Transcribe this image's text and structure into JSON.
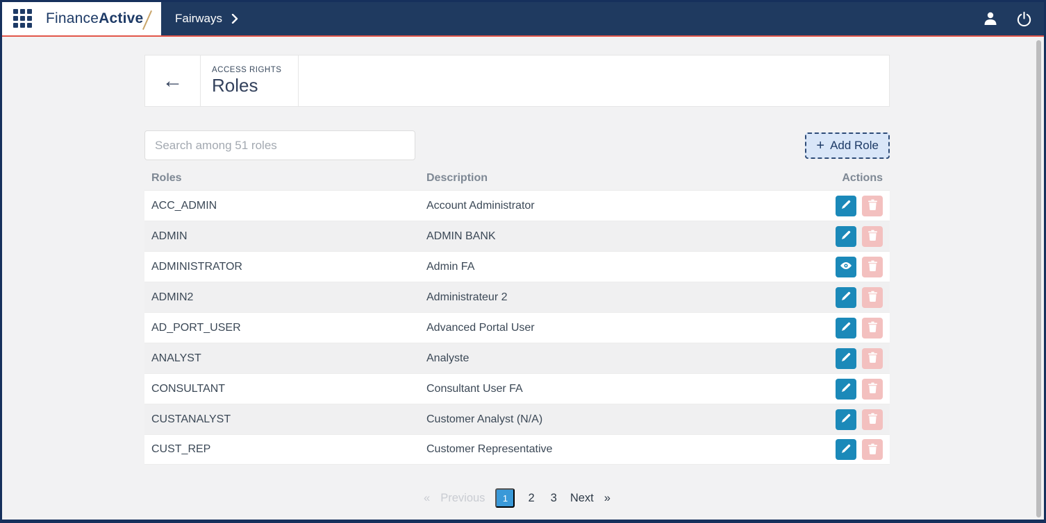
{
  "navbar": {
    "brand": {
      "name_regular": "Finance",
      "name_bold": "Active"
    },
    "breadcrumb": {
      "label": "Fairways"
    }
  },
  "page_header": {
    "back_arrow": "←",
    "section_label": "ACCESS RIGHTS",
    "title": "Roles"
  },
  "toolbar": {
    "search_placeholder": "Search among 51 roles",
    "add_button": {
      "plus": "+",
      "label": "Add Role"
    }
  },
  "table": {
    "headers": {
      "roles": "Roles",
      "description": "Description",
      "actions": "Actions"
    },
    "rows": [
      {
        "role": "ACC_ADMIN",
        "description": "Account Administrator",
        "primary_action": "edit"
      },
      {
        "role": "ADMIN",
        "description": "ADMIN BANK",
        "primary_action": "edit"
      },
      {
        "role": "ADMINISTRATOR",
        "description": "Admin FA",
        "primary_action": "view"
      },
      {
        "role": "ADMIN2",
        "description": "Administrateur 2",
        "primary_action": "edit"
      },
      {
        "role": "AD_PORT_USER",
        "description": "Advanced Portal User",
        "primary_action": "edit"
      },
      {
        "role": "ANALYST",
        "description": "Analyste",
        "primary_action": "edit"
      },
      {
        "role": "CONSULTANT",
        "description": "Consultant User FA",
        "primary_action": "edit"
      },
      {
        "role": "CUSTANALYST",
        "description": "Customer Analyst (N/A)",
        "primary_action": "edit"
      },
      {
        "role": "CUST_REP",
        "description": "Customer Representative",
        "primary_action": "edit"
      }
    ]
  },
  "pagination": {
    "prev_symbol": "«",
    "prev_label": "Previous",
    "active_page": "1",
    "page_2": "2",
    "page_3": "3",
    "next_label": "Next",
    "next_symbol": "»"
  },
  "colors": {
    "navbar_navy": "#1f3a60",
    "alert_red_line": "#e25549",
    "brand_gold": "#c9a56b",
    "edit_blue": "#1b89b9",
    "delete_pink": "#f3c0bf",
    "pagination_active_blue": "#3a99d8",
    "add_button_bg": "#d9e6f8"
  }
}
